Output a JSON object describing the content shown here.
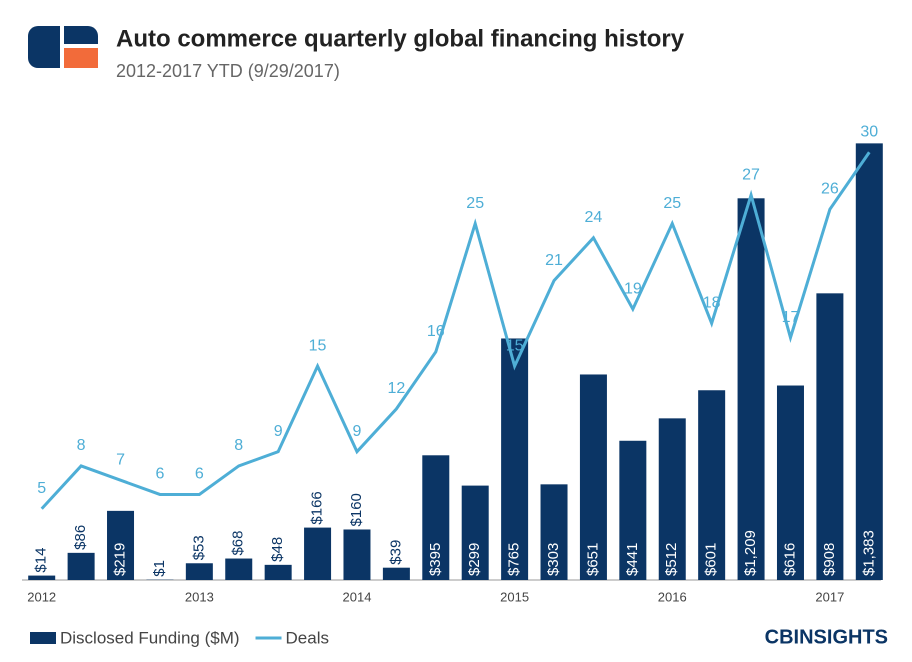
{
  "chart_data": {
    "type": "bar+line",
    "title": "Auto commerce quarterly global financing history",
    "subtitle": "2012-2017 YTD (9/29/2017)",
    "brand": "CBINSIGHTS",
    "categories": [
      "2012",
      null,
      null,
      null,
      "2013",
      null,
      null,
      null,
      "2014",
      null,
      null,
      null,
      "2015",
      null,
      null,
      null,
      "2016",
      null,
      null,
      null,
      "2017",
      null
    ],
    "ylim": [
      0,
      1400
    ],
    "y2lim": [
      0,
      31
    ],
    "series": [
      {
        "name": "Disclosed Funding ($M)",
        "type": "bar",
        "color": "#0b3565",
        "values": [
          14,
          86,
          219,
          1,
          53,
          68,
          48,
          166,
          160,
          39,
          395,
          299,
          765,
          303,
          651,
          441,
          512,
          601,
          1209,
          616,
          908,
          1383
        ],
        "value_labels": [
          "$14",
          "$86",
          "$219",
          "$1",
          "$53",
          "$68",
          "$48",
          "$166",
          "$160",
          "$39",
          "$395",
          "$299",
          "$765",
          "$303",
          "$651",
          "$441",
          "$512",
          "$601",
          "$1,209",
          "$616",
          "$908",
          "$1,383"
        ]
      },
      {
        "name": "Deals",
        "type": "line",
        "axis": "y2",
        "color": "#4eaed6",
        "values": [
          5,
          8,
          7,
          6,
          6,
          8,
          9,
          15,
          9,
          12,
          16,
          25,
          15,
          21,
          24,
          19,
          25,
          18,
          27,
          17,
          26,
          30
        ]
      }
    ]
  }
}
